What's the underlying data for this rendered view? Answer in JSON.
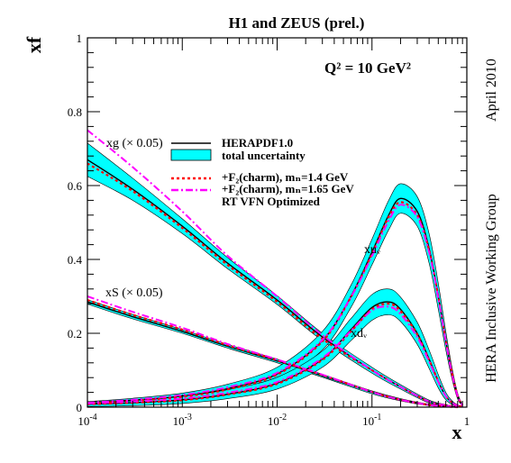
{
  "chart_data": {
    "type": "line",
    "title": "H1 and ZEUS (prel.)",
    "annotation_q2": "Q² = 10 GeV²",
    "side_text_top": "April 2010",
    "side_text_bottom": "HERA Inclusive Working Group",
    "xlabel": "x",
    "ylabel": "xf",
    "x_scale": "log",
    "xlim": [
      0.0001,
      1
    ],
    "ylim": [
      0,
      1
    ],
    "x_ticks": [
      {
        "value": 0.0001,
        "base": "10",
        "exp": "-4"
      },
      {
        "value": 0.001,
        "base": "10",
        "exp": "-3"
      },
      {
        "value": 0.01,
        "base": "10",
        "exp": "-2"
      },
      {
        "value": 0.1,
        "base": "10",
        "exp": "-1"
      },
      {
        "value": 1,
        "base": "1",
        "exp": ""
      }
    ],
    "y_ticks": [
      {
        "value": 0,
        "label": "0"
      },
      {
        "value": 0.2,
        "label": "0.2"
      },
      {
        "value": 0.4,
        "label": "0.4"
      },
      {
        "value": 0.6,
        "label": "0.6"
      },
      {
        "value": 0.8,
        "label": "0.8"
      },
      {
        "value": 1,
        "label": "1"
      }
    ],
    "legend": [
      {
        "key": "hera",
        "label": "HERAPDF1.0",
        "color": "#000000",
        "style": "solid"
      },
      {
        "key": "band",
        "label": "total uncertainty",
        "color": "#00ffff",
        "style": "band"
      },
      {
        "key": "charm14",
        "label": "+F₂(charm), mₙ=1.4 GeV",
        "color": "#ff0000",
        "style": "dotted"
      },
      {
        "key": "charm165",
        "label": "+F₂(charm), mₙ=1.65 GeV",
        "color": "#ff00ff",
        "style": "dashdot"
      },
      {
        "key": "rt",
        "label": "RT VFN Optimized",
        "color": "",
        "style": "none"
      }
    ],
    "legend_placement": "upper-center",
    "curve_labels": {
      "xg": "xg (× 0.05)",
      "xS": "xS (× 0.05)",
      "xuv": "xuᵥ",
      "xdv": "xdᵥ"
    },
    "series": [
      {
        "key": "xg",
        "x": [
          0.0001,
          0.0003,
          0.001,
          0.003,
          0.01,
          0.03,
          0.1,
          0.2,
          0.4,
          0.6,
          0.8
        ],
        "hera": [
          0.67,
          0.59,
          0.49,
          0.39,
          0.29,
          0.19,
          0.1,
          0.055,
          0.015,
          0.005,
          0.0
        ],
        "band_width": [
          0.045,
          0.03,
          0.02,
          0.015,
          0.012,
          0.01,
          0.008,
          0.006,
          0.004,
          0.002,
          0.0
        ],
        "charm14": [
          0.66,
          0.585,
          0.485,
          0.385,
          0.285,
          0.185,
          0.1,
          0.055,
          0.015,
          0.005,
          0.0
        ],
        "charm165": [
          0.75,
          0.65,
          0.53,
          0.41,
          0.3,
          0.195,
          0.1,
          0.055,
          0.015,
          0.005,
          0.0
        ]
      },
      {
        "key": "xS",
        "x": [
          0.0001,
          0.0003,
          0.001,
          0.003,
          0.01,
          0.03,
          0.1,
          0.2,
          0.4,
          0.6,
          0.8
        ],
        "hera": [
          0.285,
          0.245,
          0.205,
          0.165,
          0.125,
          0.085,
          0.04,
          0.02,
          0.006,
          0.002,
          0.0
        ],
        "band_width": [
          0.006,
          0.006,
          0.005,
          0.005,
          0.005,
          0.004,
          0.004,
          0.003,
          0.002,
          0.001,
          0.0
        ],
        "charm14": [
          0.29,
          0.25,
          0.21,
          0.168,
          0.127,
          0.087,
          0.041,
          0.02,
          0.006,
          0.002,
          0.0
        ],
        "charm165": [
          0.3,
          0.258,
          0.215,
          0.171,
          0.129,
          0.088,
          0.041,
          0.02,
          0.006,
          0.002,
          0.0
        ]
      },
      {
        "key": "xuv",
        "x": [
          0.0001,
          0.0003,
          0.001,
          0.003,
          0.01,
          0.03,
          0.06,
          0.1,
          0.15,
          0.2,
          0.3,
          0.4,
          0.5,
          0.6,
          0.7,
          0.8,
          0.9
        ],
        "hera": [
          0.01,
          0.018,
          0.03,
          0.05,
          0.09,
          0.18,
          0.3,
          0.42,
          0.52,
          0.565,
          0.53,
          0.43,
          0.3,
          0.18,
          0.09,
          0.03,
          0.005
        ],
        "band_width": [
          0.005,
          0.006,
          0.008,
          0.012,
          0.018,
          0.025,
          0.03,
          0.035,
          0.04,
          0.04,
          0.04,
          0.04,
          0.035,
          0.025,
          0.015,
          0.008,
          0.002
        ],
        "charm14": [
          0.01,
          0.017,
          0.028,
          0.048,
          0.088,
          0.178,
          0.298,
          0.415,
          0.515,
          0.555,
          0.52,
          0.425,
          0.3,
          0.18,
          0.09,
          0.03,
          0.005
        ],
        "charm165": [
          0.012,
          0.02,
          0.033,
          0.054,
          0.093,
          0.182,
          0.298,
          0.41,
          0.505,
          0.548,
          0.515,
          0.42,
          0.295,
          0.178,
          0.088,
          0.03,
          0.005
        ]
      },
      {
        "key": "xdv",
        "x": [
          0.0001,
          0.0003,
          0.001,
          0.003,
          0.01,
          0.03,
          0.06,
          0.1,
          0.15,
          0.2,
          0.3,
          0.4,
          0.5,
          0.6,
          0.7,
          0.8,
          0.9
        ],
        "hera": [
          0.008,
          0.012,
          0.02,
          0.035,
          0.065,
          0.13,
          0.21,
          0.27,
          0.285,
          0.265,
          0.2,
          0.13,
          0.07,
          0.03,
          0.012,
          0.004,
          0.001
        ],
        "band_width": [
          0.006,
          0.008,
          0.01,
          0.012,
          0.016,
          0.022,
          0.03,
          0.035,
          0.035,
          0.033,
          0.03,
          0.025,
          0.018,
          0.01,
          0.005,
          0.002,
          0.001
        ],
        "charm14": [
          0.008,
          0.012,
          0.019,
          0.034,
          0.063,
          0.128,
          0.205,
          0.265,
          0.28,
          0.26,
          0.197,
          0.128,
          0.07,
          0.03,
          0.012,
          0.004,
          0.001
        ],
        "charm165": [
          0.01,
          0.015,
          0.023,
          0.039,
          0.068,
          0.133,
          0.207,
          0.262,
          0.272,
          0.252,
          0.19,
          0.124,
          0.068,
          0.03,
          0.012,
          0.004,
          0.001
        ]
      }
    ]
  }
}
